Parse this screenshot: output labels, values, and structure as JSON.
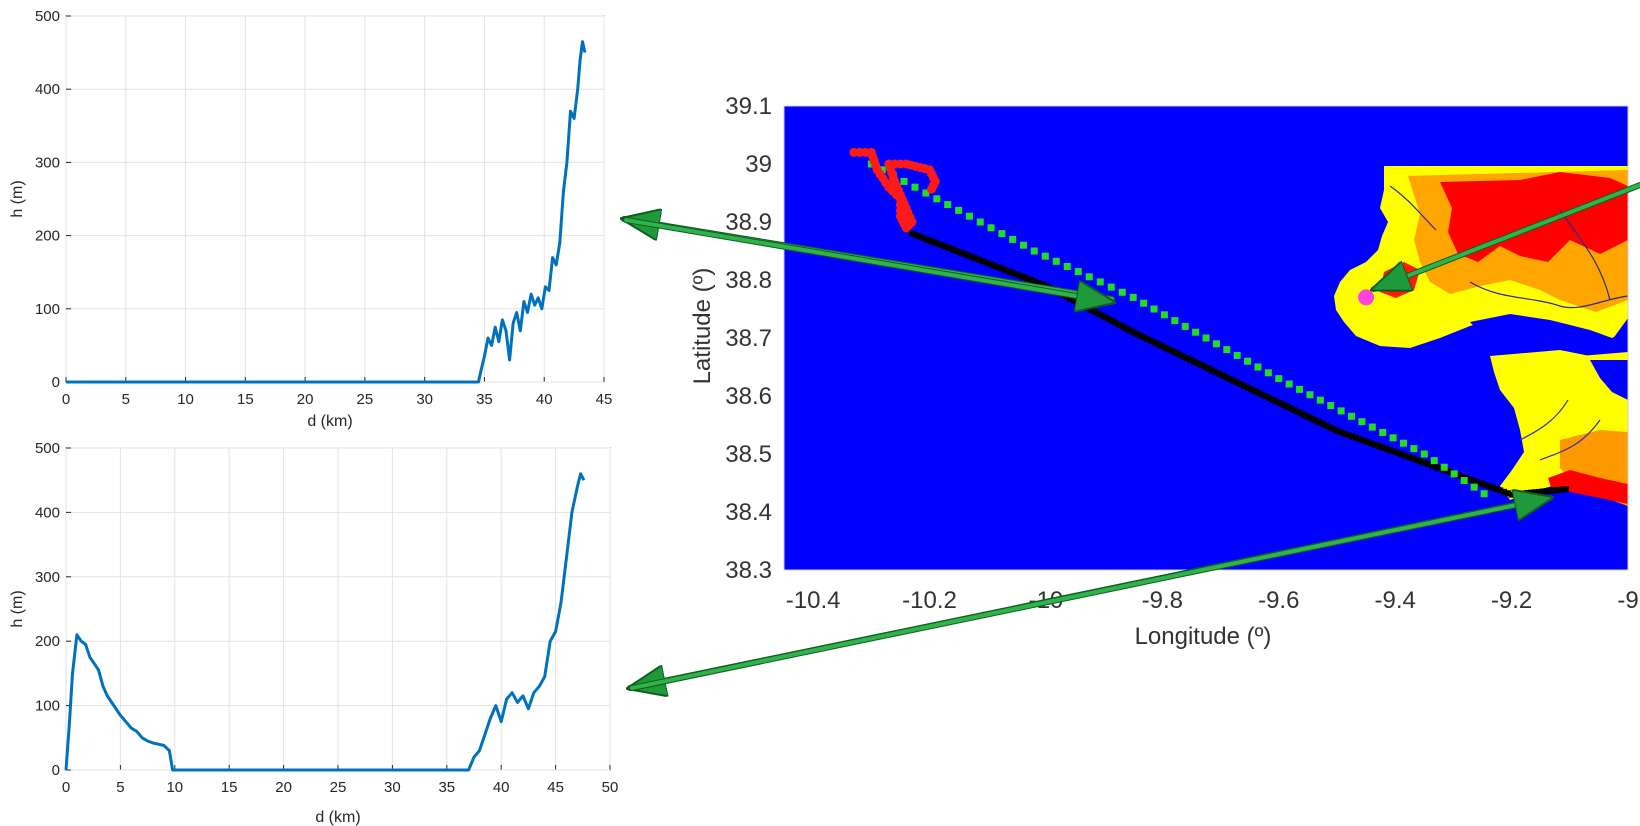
{
  "chart_data": [
    {
      "type": "line",
      "xlabel": "d (km)",
      "ylabel": "h (m)",
      "xlim": [
        0,
        45
      ],
      "ylim": [
        0,
        500
      ],
      "xticks": [
        0,
        5,
        10,
        15,
        20,
        25,
        30,
        35,
        40,
        45
      ],
      "yticks": [
        0,
        100,
        200,
        300,
        400,
        500
      ],
      "grid": true,
      "line_color": "#0072BD",
      "series": [
        {
          "x": [
            0,
            34.5,
            34.7,
            35.0,
            35.3,
            35.6,
            35.9,
            36.2,
            36.5,
            36.8,
            37.1,
            37.4,
            37.7,
            38.0,
            38.3,
            38.6,
            38.9,
            39.2,
            39.5,
            39.8,
            40.1,
            40.4,
            40.7,
            41.0,
            41.3,
            41.6,
            41.9,
            42.2,
            42.5,
            42.8,
            43.0,
            43.2,
            43.4
          ],
          "y": [
            0,
            0,
            15,
            35,
            60,
            50,
            75,
            55,
            85,
            70,
            30,
            80,
            95,
            70,
            110,
            95,
            120,
            105,
            115,
            100,
            130,
            125,
            170,
            160,
            190,
            260,
            300,
            370,
            360,
            400,
            440,
            465,
            450
          ]
        }
      ]
    },
    {
      "type": "line",
      "xlabel": "d (km)",
      "ylabel": "h (m)",
      "xlim": [
        0,
        50
      ],
      "ylim": [
        0,
        500
      ],
      "xticks": [
        0,
        5,
        10,
        15,
        20,
        25,
        30,
        35,
        40,
        45,
        50
      ],
      "yticks": [
        0,
        100,
        200,
        300,
        400,
        500
      ],
      "grid": true,
      "line_color": "#0072BD",
      "series": [
        {
          "x": [
            0,
            0.3,
            0.6,
            1.0,
            1.4,
            1.8,
            2.2,
            2.6,
            3.0,
            3.4,
            3.8,
            4.2,
            4.6,
            5.0,
            5.5,
            6.0,
            6.5,
            7.0,
            7.5,
            8.0,
            8.5,
            9.0,
            9.5,
            9.8,
            37.0,
            37.5,
            38.0,
            38.5,
            39.0,
            39.5,
            40.0,
            40.5,
            41.0,
            41.5,
            42.0,
            42.5,
            43.0,
            43.5,
            44.0,
            44.5,
            45.0,
            45.5,
            46.0,
            46.5,
            47.0,
            47.3,
            47.6
          ],
          "y": [
            0,
            70,
            150,
            210,
            200,
            195,
            175,
            165,
            155,
            130,
            115,
            105,
            95,
            85,
            75,
            65,
            60,
            50,
            45,
            42,
            40,
            38,
            30,
            0,
            0,
            20,
            30,
            55,
            80,
            100,
            75,
            110,
            120,
            105,
            115,
            95,
            120,
            130,
            145,
            200,
            215,
            260,
            330,
            400,
            440,
            460,
            450
          ]
        }
      ]
    },
    {
      "type": "heatmap",
      "xlabel": "Longitude (º)",
      "ylabel": "Latitude (º)",
      "xlim": [
        -10.45,
        -9.0
      ],
      "ylim": [
        38.3,
        39.1
      ],
      "xticks": [
        "-10.4",
        "-10.2",
        "-10",
        "-9.8",
        "-9.6",
        "-9.4",
        "-9.2",
        "-9"
      ],
      "yticks": [
        "38.3",
        "38.4",
        "38.5",
        "38.6",
        "38.7",
        "38.8",
        "38.9",
        "39",
        "39.1"
      ],
      "colors": {
        "sea": "#0000FF",
        "land_low": "#FFFF00",
        "land_mid": "#FF8800",
        "land_high": "#FF0000",
        "track_green": "#22DD22",
        "track_black": "#000000",
        "track_red": "#FF1A1A",
        "station": "#FF44DD"
      },
      "tracks": {
        "red": [
          [
            -10.33,
            39.02
          ],
          [
            -10.3,
            39.02
          ],
          [
            -10.29,
            38.99
          ],
          [
            -10.27,
            38.96
          ],
          [
            -10.25,
            38.94
          ],
          [
            -10.25,
            38.91
          ],
          [
            -10.24,
            38.89
          ],
          [
            -10.23,
            38.9
          ],
          [
            -10.26,
            38.97
          ],
          [
            -10.27,
            39.0
          ],
          [
            -10.24,
            39.0
          ],
          [
            -10.2,
            38.99
          ],
          [
            -10.19,
            38.97
          ],
          [
            -10.2,
            38.95
          ]
        ],
        "black": [
          [
            -10.23,
            38.88
          ],
          [
            -10.0,
            38.79
          ],
          [
            -9.85,
            38.71
          ],
          [
            -9.5,
            38.54
          ],
          [
            -9.2,
            38.43
          ],
          [
            -9.1,
            38.44
          ]
        ],
        "green": [
          [
            -10.3,
            39.0
          ],
          [
            -10.15,
            38.92
          ],
          [
            -10.02,
            38.85
          ],
          [
            -9.85,
            38.77
          ],
          [
            -9.6,
            38.63
          ],
          [
            -9.35,
            38.5
          ],
          [
            -9.23,
            38.42
          ]
        ]
      },
      "station": [
        -9.45,
        38.77
      ]
    }
  ]
}
